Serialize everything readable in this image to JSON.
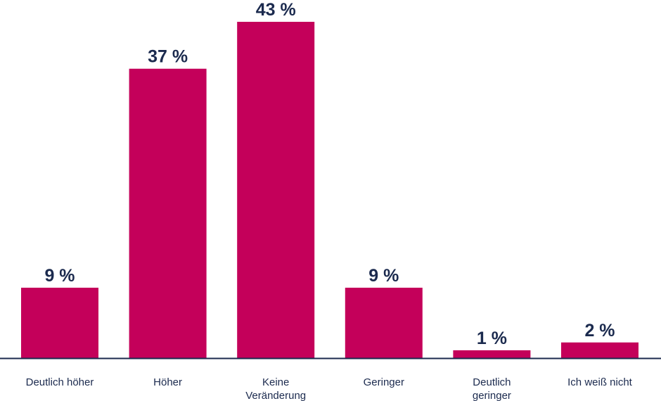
{
  "chart_data": {
    "type": "bar",
    "categories": [
      [
        "Deutlich höher"
      ],
      [
        "Höher"
      ],
      [
        "Keine",
        "Veränderung"
      ],
      [
        "Geringer"
      ],
      [
        "Deutlich",
        "geringer"
      ],
      [
        "Ich weiß nicht"
      ]
    ],
    "values": [
      9,
      37,
      43,
      9,
      1,
      2
    ],
    "value_labels": [
      "9 %",
      "37 %",
      "43 %",
      "9 %",
      "1 %",
      "2 %"
    ],
    "unit": "%",
    "ylim": [
      0,
      43
    ],
    "grid": false,
    "legend": "none"
  },
  "colors": {
    "bar": "#c4005a",
    "text": "#1b2a4e",
    "axis": "#1b2a4e"
  }
}
